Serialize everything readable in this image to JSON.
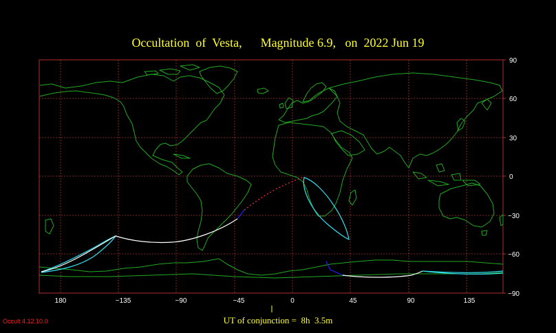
{
  "title": "Occultation  of  Vesta,      Magnitude 6.9,   on  2022 Jun 19",
  "footer": "UT of conjunction =  8h  3.5m",
  "version": "Occult 4.12.10.0",
  "axes": {
    "lon_ticks": [
      "180",
      "−135",
      "−90",
      "−45",
      "0",
      "45",
      "90",
      "135"
    ],
    "lat_ticks": [
      "90",
      "60",
      "30",
      "0",
      "−30",
      "−60",
      "−90"
    ]
  },
  "colors": {
    "background": "#000000",
    "grid": "#b03030",
    "coast": "#22aa22",
    "central_line": "#ffffff",
    "limit_line": "#30e0f0",
    "daylight_segment": "#2020ff",
    "path_not_visible": "#ff3030",
    "text": "#ffff33"
  }
}
